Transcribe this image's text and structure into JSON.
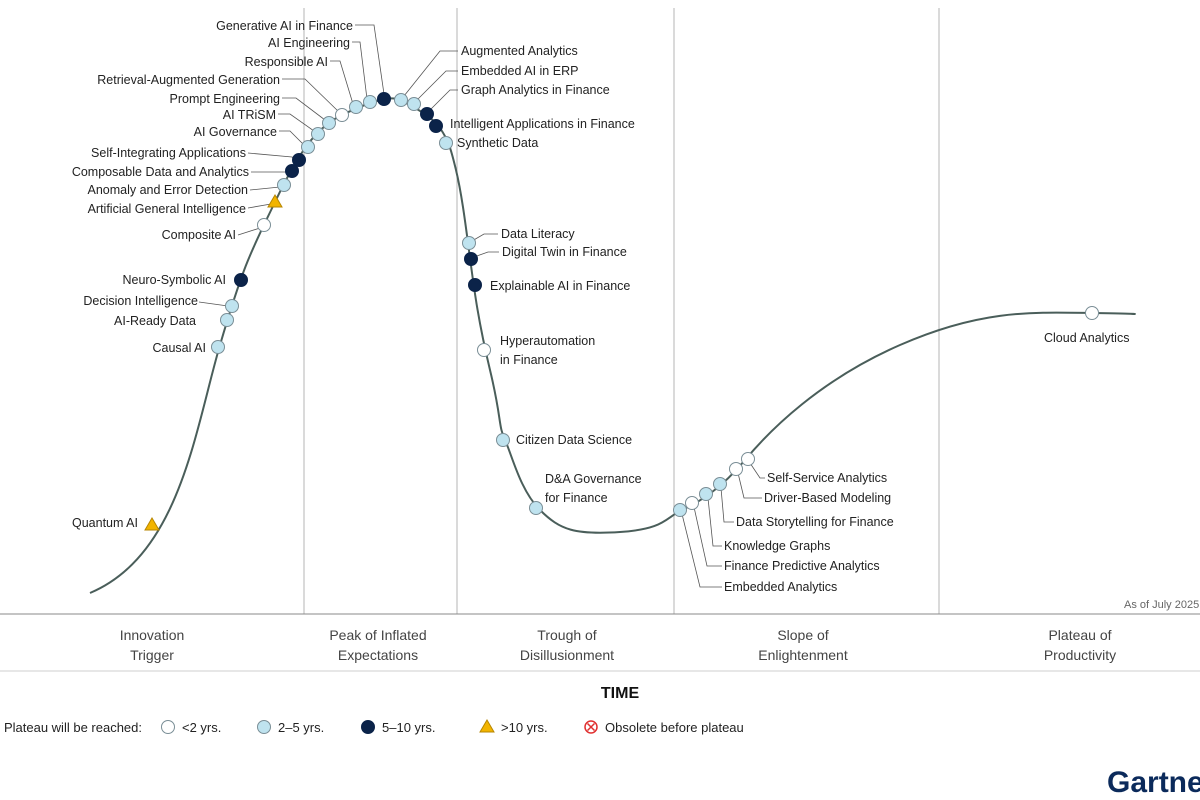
{
  "colors": {
    "under2": "#ffffff",
    "y2to5": "#bfe3ef",
    "y5to10": "#0b2349",
    "over10": "#f2b400",
    "obsolete": "#e03030",
    "curve": "#4a5e5a",
    "divider": "#b5b5b5",
    "brand": "#0b2a5b"
  },
  "as_of": "As of July 2025",
  "brand": "Gartner",
  "chart_data": {
    "type": "scatter",
    "xlabel": "TIME",
    "phases": [
      "Innovation Trigger",
      "Peak of Inflated Expectations",
      "Trough of Disillusionment",
      "Slope of Enlightenment",
      "Plateau of Productivity"
    ],
    "legend": {
      "title": "Plateau will be reached:",
      "items": [
        {
          "key": "under2",
          "label": "<2 yrs."
        },
        {
          "key": "y2to5",
          "label": "2–5 yrs."
        },
        {
          "key": "y5to10",
          "label": "5–10 yrs."
        },
        {
          "key": "over10",
          "label": ">10 yrs."
        },
        {
          "key": "obsolete",
          "label": "Obsolete before plateau"
        }
      ]
    },
    "points": [
      {
        "name": "Quantum AI",
        "phase": "Innovation Trigger",
        "plateau": "over10"
      },
      {
        "name": "Causal AI",
        "phase": "Innovation Trigger",
        "plateau": "y2to5"
      },
      {
        "name": "AI-Ready Data",
        "phase": "Innovation Trigger",
        "plateau": "y2to5"
      },
      {
        "name": "Decision Intelligence",
        "phase": "Innovation Trigger",
        "plateau": "y2to5"
      },
      {
        "name": "Neuro-Symbolic AI",
        "phase": "Innovation Trigger",
        "plateau": "y5to10"
      },
      {
        "name": "Composite AI",
        "phase": "Innovation Trigger",
        "plateau": "under2"
      },
      {
        "name": "Artificial General Intelligence",
        "phase": "Innovation Trigger",
        "plateau": "over10"
      },
      {
        "name": "Anomaly and Error Detection",
        "phase": "Innovation Trigger",
        "plateau": "y2to5"
      },
      {
        "name": "Composable Data and Analytics",
        "phase": "Innovation Trigger",
        "plateau": "y5to10"
      },
      {
        "name": "Self-Integrating Applications",
        "phase": "Innovation Trigger",
        "plateau": "y5to10"
      },
      {
        "name": "AI Governance",
        "phase": "Peak of Inflated Expectations",
        "plateau": "y2to5"
      },
      {
        "name": "AI TRiSM",
        "phase": "Peak of Inflated Expectations",
        "plateau": "y2to5"
      },
      {
        "name": "Prompt Engineering",
        "phase": "Peak of Inflated Expectations",
        "plateau": "y2to5"
      },
      {
        "name": "Retrieval-Augmented Generation",
        "phase": "Peak of Inflated Expectations",
        "plateau": "under2"
      },
      {
        "name": "Responsible AI",
        "phase": "Peak of Inflated Expectations",
        "plateau": "y2to5"
      },
      {
        "name": "AI Engineering",
        "phase": "Peak of Inflated Expectations",
        "plateau": "y2to5"
      },
      {
        "name": "Generative AI in Finance",
        "phase": "Peak of Inflated Expectations",
        "plateau": "y5to10"
      },
      {
        "name": "Augmented Analytics",
        "phase": "Peak of Inflated Expectations",
        "plateau": "y2to5"
      },
      {
        "name": "Embedded AI in ERP",
        "phase": "Peak of Inflated Expectations",
        "plateau": "y2to5"
      },
      {
        "name": "Graph Analytics in Finance",
        "phase": "Peak of Inflated Expectations",
        "plateau": "y5to10"
      },
      {
        "name": "Intelligent Applications in Finance",
        "phase": "Peak of Inflated Expectations",
        "plateau": "y5to10"
      },
      {
        "name": "Synthetic Data",
        "phase": "Peak of Inflated Expectations",
        "plateau": "y2to5"
      },
      {
        "name": "Data Literacy",
        "phase": "Trough of Disillusionment",
        "plateau": "y2to5"
      },
      {
        "name": "Digital Twin in Finance",
        "phase": "Trough of Disillusionment",
        "plateau": "y5to10"
      },
      {
        "name": "Explainable AI in Finance",
        "phase": "Trough of Disillusionment",
        "plateau": "y5to10"
      },
      {
        "name": "Hyperautomation in Finance",
        "phase": "Trough of Disillusionment",
        "plateau": "under2"
      },
      {
        "name": "Citizen Data Science",
        "phase": "Trough of Disillusionment",
        "plateau": "y2to5"
      },
      {
        "name": "D&A Governance for Finance",
        "phase": "Trough of Disillusionment",
        "plateau": "y2to5"
      },
      {
        "name": "Embedded Analytics",
        "phase": "Slope of Enlightenment",
        "plateau": "y2to5"
      },
      {
        "name": "Finance Predictive Analytics",
        "phase": "Slope of Enlightenment",
        "plateau": "under2"
      },
      {
        "name": "Knowledge Graphs",
        "phase": "Slope of Enlightenment",
        "plateau": "y2to5"
      },
      {
        "name": "Data Storytelling for Finance",
        "phase": "Slope of Enlightenment",
        "plateau": "y2to5"
      },
      {
        "name": "Driver-Based Modeling",
        "phase": "Slope of Enlightenment",
        "plateau": "under2"
      },
      {
        "name": "Self-Service Analytics",
        "phase": "Slope of Enlightenment",
        "plateau": "under2"
      },
      {
        "name": "Cloud Analytics",
        "phase": "Plateau of Productivity",
        "plateau": "under2"
      }
    ]
  }
}
